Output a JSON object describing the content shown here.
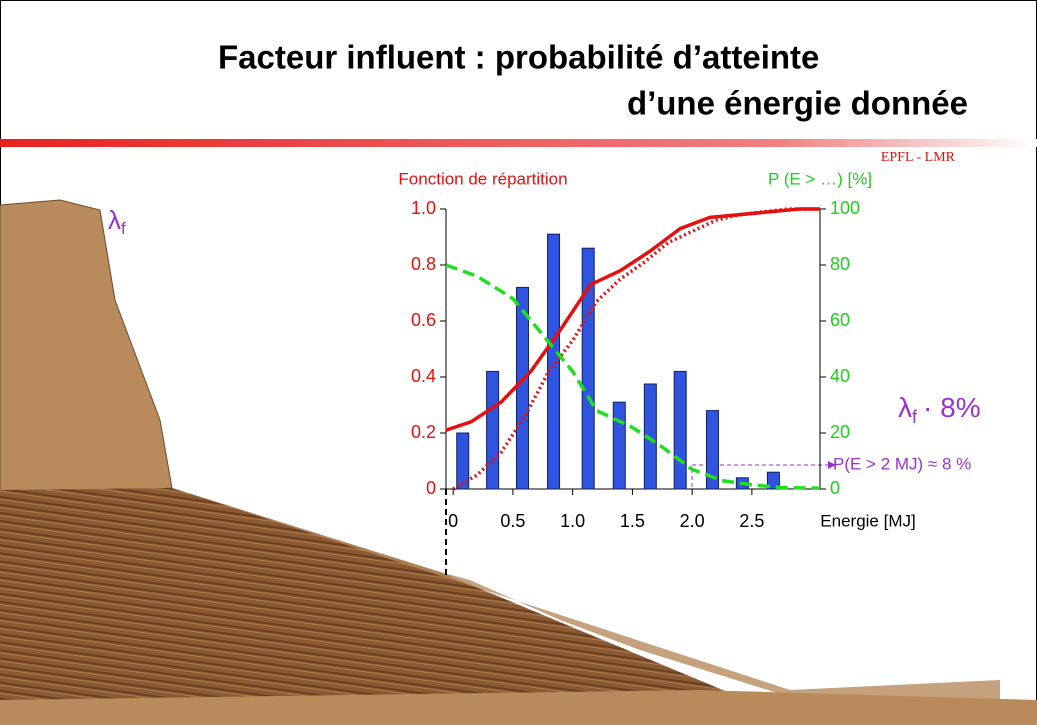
{
  "title": [
    "Facteur influent :  probabilité d’atteinte",
    "d’une énergie donnée"
  ],
  "footer_brand": "EPFL - LMR",
  "annotations": [
    {
      "text": "λ",
      "sub": "f"
    },
    {
      "text": "λ",
      "sub": "f",
      "suffix": "· 8%"
    },
    {
      "text": "P(E > 2 MJ) ≈ 8 %"
    }
  ],
  "chart_data": {
    "type": "bar",
    "ylabel": "Fonction de répartition",
    "y2label": "P (E > …) [%]",
    "xlabel": "Energie [MJ]",
    "xlim": [
      -0.06,
      3.07
    ],
    "xticks": [
      0,
      0.5,
      {
        "value": 1,
        "label": "1.0"
      },
      1.5,
      {
        "value": 2,
        "label": "2.0"
      },
      2.5
    ],
    "ylim": [
      0,
      1
    ],
    "yticks": [
      0,
      0.2,
      0.4,
      0.6,
      0.8,
      {
        "value": 1,
        "label": "1.0"
      }
    ],
    "y2lim": [
      0,
      100
    ],
    "y2ticks": [
      0,
      20,
      40,
      60,
      80,
      100
    ],
    "series": [
      {
        "type": "bar",
        "color": "#2f55e0",
        "x": [
          0.08,
          0.33,
          0.58,
          0.84,
          1.13,
          1.39,
          1.65,
          1.9,
          2.17,
          2.42,
          2.68
        ],
        "values": [
          0.2,
          0.42,
          0.72,
          0.91,
          0.86,
          0.31,
          0.375,
          0.42,
          0.28,
          0.04,
          0.06
        ]
      },
      {
        "type": "line",
        "style": "solid",
        "color": "#e41010",
        "x": [
          -0.06,
          0.15,
          0.4,
          0.65,
          0.9,
          1.15,
          1.4,
          1.65,
          1.9,
          2.15,
          2.4,
          2.65,
          2.9,
          3.07
        ],
        "values": [
          0.21,
          0.24,
          0.31,
          0.42,
          0.57,
          0.73,
          0.78,
          0.85,
          0.93,
          0.97,
          0.98,
          0.99,
          1,
          1
        ]
      },
      {
        "type": "line",
        "style": "dotted",
        "color": "#e41010",
        "x": [
          0,
          0.2,
          0.4,
          0.6,
          0.8,
          1,
          1.2,
          1.4,
          1.6,
          1.8,
          2,
          2.2,
          2.4,
          2.6,
          2.8,
          3.07
        ],
        "values": [
          0,
          0.05,
          0.13,
          0.26,
          0.42,
          0.53,
          0.67,
          0.75,
          0.81,
          0.88,
          0.92,
          0.96,
          0.98,
          0.99,
          1,
          1
        ]
      },
      {
        "type": "line",
        "style": "dashed",
        "axis": "y2",
        "color": "#22dd22",
        "x": [
          -0.06,
          0.2,
          0.5,
          0.75,
          1,
          1.2,
          1.5,
          1.75,
          2,
          2.25,
          2.5,
          2.75,
          3.07
        ],
        "values": [
          80,
          76,
          68,
          55,
          42,
          28,
          22,
          15,
          7,
          3,
          1.5,
          0.5,
          0.3
        ]
      }
    ]
  }
}
